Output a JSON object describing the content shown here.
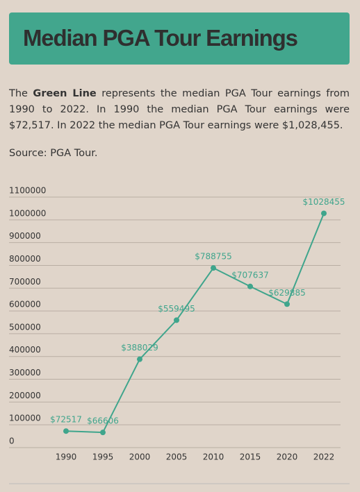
{
  "header": {
    "title": "Median PGA Tour Earnings"
  },
  "description": {
    "lead": "The",
    "highlight": "Green Line",
    "rest": "represents the median PGA Tour earnings from 1990 to 2022. In 1990 the median PGA Tour earnings were $72,517. In 2022 the median PGA Tour earnings were $1,028,455."
  },
  "source": "Source: PGA Tour.",
  "chart_data": {
    "type": "line",
    "categories": [
      "1990",
      "1995",
      "2000",
      "2005",
      "2010",
      "2015",
      "2020",
      "2022"
    ],
    "series": [
      {
        "name": "Green Line",
        "color": "#3fa58c",
        "values": [
          72517,
          66606,
          388029,
          559495,
          788755,
          707637,
          629885,
          1028455
        ],
        "value_labels": [
          "$72517",
          "$66606",
          "$388029",
          "$559495",
          "$788755",
          "$707637",
          "$629885",
          "$1028455"
        ]
      }
    ],
    "ylim": [
      0,
      1100000
    ],
    "yticks": [
      0,
      100000,
      200000,
      300000,
      400000,
      500000,
      600000,
      700000,
      800000,
      900000,
      1000000,
      1100000
    ],
    "grid": true
  }
}
